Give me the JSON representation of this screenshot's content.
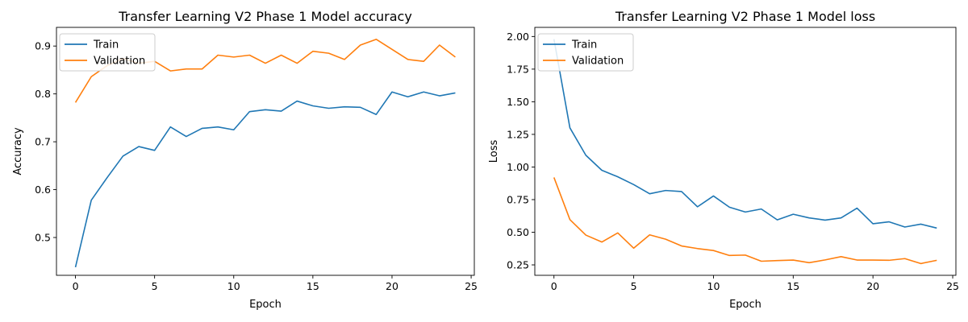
{
  "chart_data": [
    {
      "type": "line",
      "title": "Transfer Learning V2 Phase 1 Model accuracy",
      "xlabel": "Epoch",
      "ylabel": "Accuracy",
      "x": [
        0,
        1,
        2,
        3,
        4,
        5,
        6,
        7,
        8,
        9,
        10,
        11,
        12,
        13,
        14,
        15,
        16,
        17,
        18,
        19,
        20,
        21,
        22,
        23,
        24
      ],
      "xlim": [
        -1.2,
        25.2
      ],
      "ylim": [
        0.421,
        0.939
      ],
      "xticks": [
        0,
        5,
        10,
        15,
        20,
        25
      ],
      "yticks": [
        0.5,
        0.6,
        0.7,
        0.8,
        0.9
      ],
      "ytick_labels": [
        "0.5",
        "0.6",
        "0.7",
        "0.8",
        "0.9"
      ],
      "grid": false,
      "legend": "upper left",
      "series": [
        {
          "name": "Train",
          "color": "#1f77b4",
          "values": [
            0.438,
            0.578,
            0.625,
            0.67,
            0.69,
            0.682,
            0.731,
            0.711,
            0.728,
            0.731,
            0.725,
            0.763,
            0.767,
            0.764,
            0.785,
            0.775,
            0.77,
            0.773,
            0.772,
            0.757,
            0.804,
            0.794,
            0.804,
            0.796,
            0.802
          ]
        },
        {
          "name": "Validation",
          "color": "#ff7f0e",
          "values": [
            0.782,
            0.836,
            0.859,
            0.874,
            0.864,
            0.868,
            0.848,
            0.852,
            0.852,
            0.881,
            0.877,
            0.881,
            0.864,
            0.881,
            0.864,
            0.889,
            0.885,
            0.872,
            0.902,
            0.914,
            0.893,
            0.872,
            0.868,
            0.902,
            0.877
          ]
        }
      ]
    },
    {
      "type": "line",
      "title": "Transfer Learning V2 Phase 1 Model loss",
      "xlabel": "Epoch",
      "ylabel": "Loss",
      "x": [
        0,
        1,
        2,
        3,
        4,
        5,
        6,
        7,
        8,
        9,
        10,
        11,
        12,
        13,
        14,
        15,
        16,
        17,
        18,
        19,
        20,
        21,
        22,
        23,
        24
      ],
      "xlim": [
        -1.2,
        25.2
      ],
      "ylim": [
        0.17,
        2.07
      ],
      "xticks": [
        0,
        5,
        10,
        15,
        20,
        25
      ],
      "yticks": [
        0.25,
        0.5,
        0.75,
        1.0,
        1.25,
        1.5,
        1.75,
        2.0
      ],
      "ytick_labels": [
        "0.25",
        "0.50",
        "0.75",
        "1.00",
        "1.25",
        "1.50",
        "1.75",
        "2.00"
      ],
      "grid": false,
      "legend": "upper left",
      "series": [
        {
          "name": "Train",
          "color": "#1f77b4",
          "values": [
            1.98,
            1.3,
            1.09,
            0.975,
            0.925,
            0.865,
            0.795,
            0.82,
            0.812,
            0.695,
            0.778,
            0.692,
            0.655,
            0.678,
            0.595,
            0.638,
            0.61,
            0.593,
            0.61,
            0.685,
            0.565,
            0.58,
            0.54,
            0.562,
            0.532
          ]
        },
        {
          "name": "Validation",
          "color": "#ff7f0e",
          "values": [
            0.92,
            0.597,
            0.478,
            0.425,
            0.495,
            0.378,
            0.48,
            0.447,
            0.395,
            0.375,
            0.36,
            0.322,
            0.325,
            0.278,
            0.283,
            0.287,
            0.267,
            0.288,
            0.313,
            0.287,
            0.287,
            0.285,
            0.298,
            0.26,
            0.285
          ]
        }
      ]
    }
  ]
}
